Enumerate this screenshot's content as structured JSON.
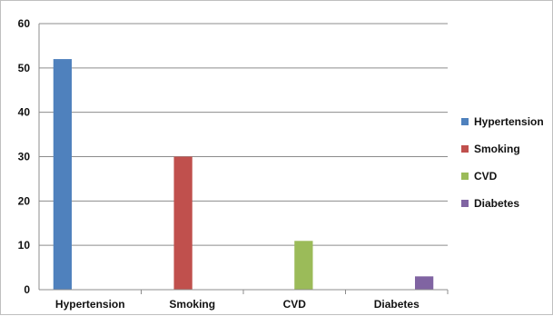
{
  "chart_data": {
    "type": "bar",
    "categories": [
      "Hypertension",
      "Smoking",
      "CVD",
      "Diabetes"
    ],
    "series": [
      {
        "name": "Hypertension",
        "color": "#4F81BD",
        "values": [
          52,
          null,
          null,
          null
        ]
      },
      {
        "name": "Smoking",
        "color": "#C0504D",
        "values": [
          null,
          30,
          null,
          null
        ]
      },
      {
        "name": "CVD",
        "color": "#9BBB59",
        "values": [
          null,
          null,
          11,
          null
        ]
      },
      {
        "name": "Diabetes",
        "color": "#8064A2",
        "values": [
          null,
          null,
          null,
          3
        ]
      }
    ],
    "title": "",
    "xlabel": "",
    "ylabel": "",
    "ylim": [
      0,
      60
    ],
    "yticks": [
      "0",
      "10",
      "20",
      "30",
      "40",
      "50",
      "60"
    ],
    "grid": true,
    "legend_position": "right"
  }
}
